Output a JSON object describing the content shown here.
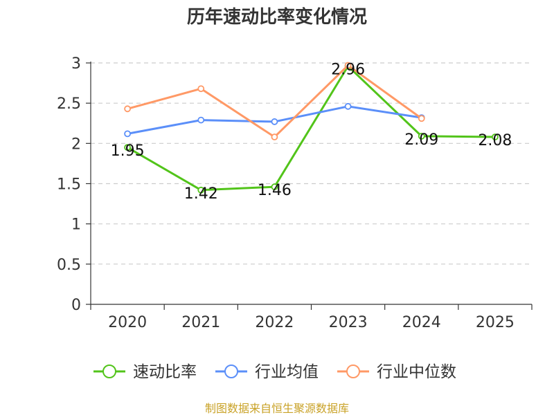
{
  "chart_data": {
    "type": "line",
    "title": "历年速动比率变化情况",
    "categories": [
      "2020",
      "2021",
      "2022",
      "2023",
      "2024",
      "2025"
    ],
    "ylim": [
      0,
      3
    ],
    "yticks": [
      "0",
      "0.5",
      "1",
      "1.5",
      "2",
      "2.5",
      "3"
    ],
    "grid": true,
    "legend_position": "bottom",
    "series": [
      {
        "name": "速动比率",
        "color": "#52c41a",
        "values": [
          1.95,
          1.42,
          1.46,
          2.96,
          2.09,
          2.08
        ],
        "labels": [
          "1.95",
          "1.42",
          "1.46",
          "2.96",
          "2.09",
          "2.08"
        ]
      },
      {
        "name": "行业均值",
        "color": "#5b8ff9",
        "values": [
          2.12,
          2.29,
          2.27,
          2.46,
          2.32,
          null
        ]
      },
      {
        "name": "行业中位数",
        "color": "#ff9966",
        "values": [
          2.43,
          2.68,
          2.08,
          2.97,
          2.31,
          null
        ]
      }
    ],
    "source": "制图数据来自恒生聚源数据库"
  }
}
